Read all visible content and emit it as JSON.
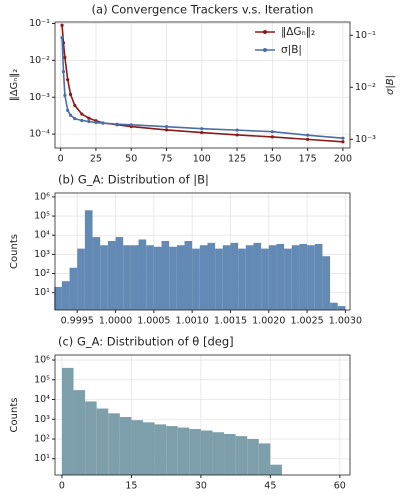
{
  "chart_data": [
    {
      "type": "line",
      "title": "(a) Convergence Trackers v.s. Iteration",
      "y_label": "‖ΔGₙ‖₂",
      "y2_label": "σ|B|",
      "x": [
        1,
        2,
        3,
        5,
        7,
        10,
        15,
        20,
        25,
        30,
        40,
        50,
        75,
        100,
        125,
        150,
        175,
        200
      ],
      "series": [
        {
          "name": "‖ΔGₙ‖₂",
          "color": "#8b1a1a",
          "values": [
            0.09,
            0.03,
            0.012,
            0.003,
            0.0012,
            0.0006,
            0.00035,
            0.00027,
            0.00023,
            0.0002,
            0.00018,
            0.00016,
            0.00013,
            0.00011,
            9.5e-05,
            8.4e-05,
            7.2e-05,
            6.2e-05
          ]
        },
        {
          "name": "σ|B|",
          "color": "#4a6fa5",
          "axis": "y2",
          "values": [
            0.09,
            0.02,
            0.007,
            0.0036,
            0.0029,
            0.0025,
            0.0023,
            0.0022,
            0.0021,
            0.00205,
            0.00195,
            0.0019,
            0.00175,
            0.0016,
            0.0015,
            0.0014,
            0.0012,
            0.00105
          ]
        }
      ],
      "xlim": [
        -4,
        205
      ],
      "xticks": [
        0,
        25,
        50,
        75,
        100,
        125,
        150,
        175,
        200
      ],
      "ylim": [
        4.2e-05,
        0.11
      ],
      "log_y": true,
      "yticks": [
        {
          "value": 0.0001,
          "label": "10⁻⁴"
        },
        {
          "value": 0.001,
          "label": "10⁻³"
        },
        {
          "value": 0.01,
          "label": "10⁻²"
        },
        {
          "value": 0.1,
          "label": "10⁻¹"
        }
      ],
      "y2lim": [
        0.00068,
        0.18
      ],
      "y2ticks": [
        {
          "value": 0.001,
          "label": "10⁻³"
        },
        {
          "value": 0.01,
          "label": "10⁻²"
        },
        {
          "value": 0.1,
          "label": "10⁻¹"
        }
      ],
      "grid": true,
      "legend": "upper right"
    },
    {
      "type": "histogram",
      "title": "(b) G_A: Distribution of |B|",
      "y_label": "Counts",
      "color": "#6389b5",
      "bins": [
        0.9992,
        0.9993,
        0.9994,
        0.9995,
        0.9996,
        0.9997,
        0.9998,
        0.9999,
        1.0,
        1.0001,
        1.0002,
        1.0003,
        1.0004,
        1.0005,
        1.0006,
        1.0007,
        1.0008,
        1.0009,
        1.001,
        1.0011,
        1.0012,
        1.0013,
        1.0014,
        1.0015,
        1.0016,
        1.0017,
        1.0018,
        1.0019,
        1.002,
        1.0021,
        1.0022,
        1.0023,
        1.0024,
        1.0025,
        1.0026,
        1.0027,
        1.0028,
        1.0029,
        1.003,
        1.0031
      ],
      "values": [
        20,
        40,
        200,
        2000,
        200000,
        8000,
        3000,
        5000,
        8000,
        3000,
        3000,
        6000,
        3000,
        2500,
        5000,
        2500,
        3000,
        5000,
        2000,
        3000,
        4000,
        2000,
        3000,
        4000,
        2000,
        3000,
        4000,
        2000,
        3000,
        3500,
        2000,
        3000,
        3500,
        3000,
        3500,
        800,
        3,
        2,
        1
      ],
      "xlim": [
        0.99921,
        1.00306
      ],
      "xticks": [
        0.9995,
        {
          "value": 1.0,
          "label": "1.0000"
        },
        1.0005,
        {
          "value": 1.001,
          "label": "1.0010"
        },
        1.0015,
        {
          "value": 1.002,
          "label": "1.0020"
        },
        1.0025,
        {
          "value": 1.003,
          "label": "1.0030"
        }
      ],
      "ylim": [
        1.25,
        1600000
      ],
      "log_y": true,
      "yticks": [
        {
          "value": 10,
          "label": "10¹"
        },
        {
          "value": 100,
          "label": "10²"
        },
        {
          "value": 1000,
          "label": "10³"
        },
        {
          "value": 10000,
          "label": "10⁴"
        },
        {
          "value": 100000,
          "label": "10⁵"
        },
        {
          "value": 1000000,
          "label": "10⁶"
        }
      ],
      "grid": true
    },
    {
      "type": "histogram",
      "title": "(c) G_A: Distribution of θ [deg]",
      "y_label": "Counts",
      "color": "#7d9fab",
      "bins": [
        0,
        2.5,
        5,
        7.5,
        10,
        12.5,
        15,
        17.5,
        20,
        22.5,
        25,
        27.5,
        30,
        32.5,
        35,
        37.5,
        40,
        42.5,
        45,
        47.5
      ],
      "values": [
        400000,
        30000,
        8000,
        3500,
        2000,
        1300,
        900,
        700,
        550,
        450,
        380,
        320,
        270,
        220,
        180,
        140,
        100,
        60,
        5
      ],
      "xlim": [
        -1.5,
        62.2
      ],
      "xticks": [
        0,
        15,
        30,
        45,
        60
      ],
      "ylim": [
        1.5,
        1800000
      ],
      "log_y": true,
      "yticks": [
        {
          "value": 10,
          "label": "10¹"
        },
        {
          "value": 100,
          "label": "10²"
        },
        {
          "value": 1000,
          "label": "10³"
        },
        {
          "value": 10000,
          "label": "10⁴"
        },
        {
          "value": 100000,
          "label": "10⁵"
        },
        {
          "value": 1000000,
          "label": "10⁶"
        }
      ],
      "grid": true
    }
  ]
}
